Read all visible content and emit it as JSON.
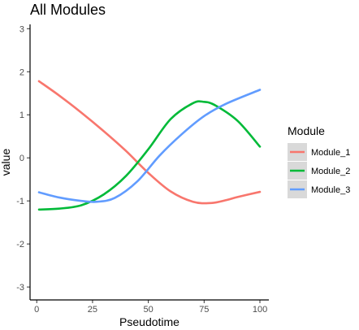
{
  "chart_data": {
    "type": "line",
    "title": "All Modules",
    "xlabel": "Pseudotime",
    "ylabel": "value",
    "xlim": [
      -3,
      104
    ],
    "ylim": [
      -3.3,
      3.1
    ],
    "xticks": [
      0,
      25,
      50,
      75,
      100
    ],
    "yticks": [
      -3,
      -2,
      -1,
      0,
      1,
      2,
      3
    ],
    "grid": false,
    "legend": {
      "title": "Module",
      "position": "right"
    },
    "series": [
      {
        "name": "Module_1",
        "color": "#F8766D",
        "x": [
          1,
          10,
          20,
          30,
          40,
          50,
          60,
          70,
          78,
          85,
          90,
          100
        ],
        "y": [
          1.78,
          1.45,
          1.05,
          0.62,
          0.16,
          -0.35,
          -0.78,
          -1.02,
          -1.05,
          -0.98,
          -0.91,
          -0.79
        ]
      },
      {
        "name": "Module_2",
        "color": "#00BA38",
        "x": [
          1,
          10,
          20,
          30,
          40,
          50,
          60,
          70,
          75,
          80,
          90,
          100
        ],
        "y": [
          -1.2,
          -1.18,
          -1.1,
          -0.85,
          -0.42,
          0.2,
          0.9,
          1.27,
          1.3,
          1.22,
          0.86,
          0.26
        ]
      },
      {
        "name": "Module_3",
        "color": "#619CFF",
        "x": [
          1,
          10,
          20,
          27,
          35,
          45,
          55,
          65,
          75,
          85,
          100
        ],
        "y": [
          -0.8,
          -0.92,
          -1.0,
          -1.02,
          -0.93,
          -0.55,
          0.05,
          0.55,
          0.97,
          1.26,
          1.58
        ]
      }
    ]
  }
}
